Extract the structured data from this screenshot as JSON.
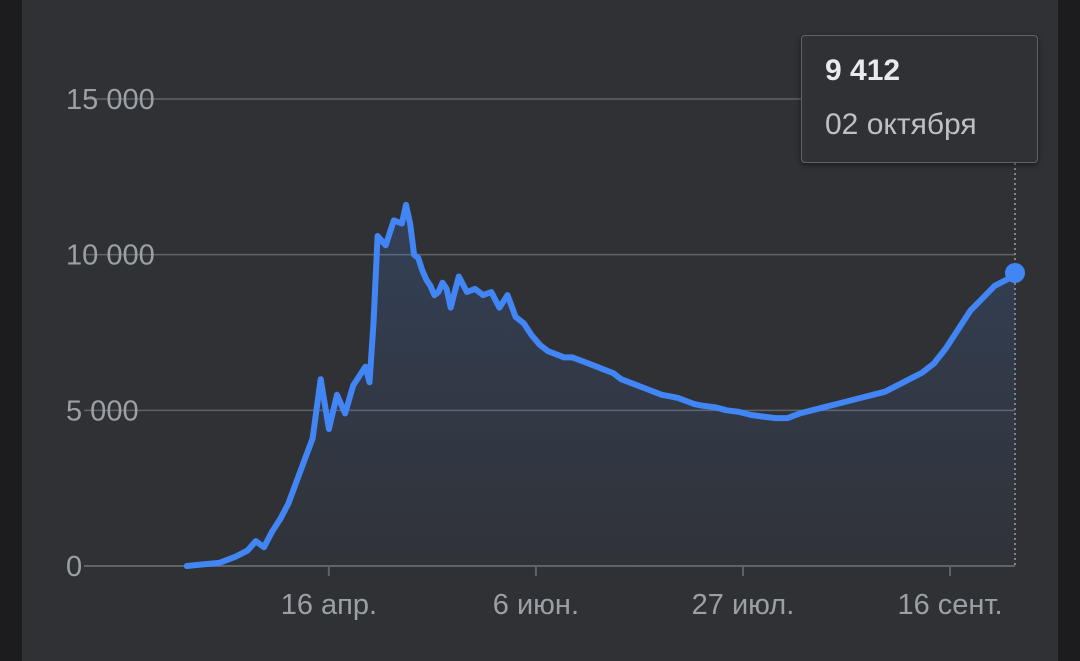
{
  "colors": {
    "line": "#4285f4",
    "grid": "#5f6368",
    "text": "#9aa0a6",
    "panel": "#303134"
  },
  "tooltip": {
    "value": "9 412",
    "date": "02 октября"
  },
  "chart_data": {
    "type": "line",
    "y_tick_labels": [
      "0",
      "5 000",
      "10 000",
      "15 000"
    ],
    "y_tick_values": [
      0,
      5000,
      10000,
      15000
    ],
    "x_tick_labels": [
      "16 апр.",
      "6 июн.",
      "27 июл.",
      "16 сент."
    ],
    "x_tick_dates": [
      "2020-04-16",
      "2020-06-06",
      "2020-07-27",
      "2020-09-16"
    ],
    "ylim": [
      0,
      15000
    ],
    "xlim": [
      "2020-03-12",
      "2020-10-02"
    ],
    "grid": true,
    "highlight": {
      "date": "2020-10-02",
      "value": 9412
    },
    "series": [
      {
        "x": [
          "2020-03-12",
          "2020-03-16",
          "2020-03-20",
          "2020-03-24",
          "2020-03-27",
          "2020-03-29",
          "2020-03-31",
          "2020-04-02",
          "2020-04-04",
          "2020-04-06",
          "2020-04-08",
          "2020-04-10",
          "2020-04-12",
          "2020-04-14",
          "2020-04-16",
          "2020-04-18",
          "2020-04-20",
          "2020-04-22",
          "2020-04-23",
          "2020-04-24",
          "2020-04-25",
          "2020-04-26",
          "2020-04-27",
          "2020-04-28",
          "2020-04-30",
          "2020-05-02",
          "2020-05-04",
          "2020-05-05",
          "2020-05-06",
          "2020-05-07",
          "2020-05-08",
          "2020-05-09",
          "2020-05-10",
          "2020-05-11",
          "2020-05-12",
          "2020-05-13",
          "2020-05-14",
          "2020-05-15",
          "2020-05-16",
          "2020-05-17",
          "2020-05-18",
          "2020-05-20",
          "2020-05-22",
          "2020-05-24",
          "2020-05-26",
          "2020-05-28",
          "2020-05-30",
          "2020-06-01",
          "2020-06-03",
          "2020-06-05",
          "2020-06-07",
          "2020-06-09",
          "2020-06-11",
          "2020-06-13",
          "2020-06-15",
          "2020-06-17",
          "2020-06-19",
          "2020-06-21",
          "2020-06-23",
          "2020-06-25",
          "2020-06-27",
          "2020-06-29",
          "2020-07-01",
          "2020-07-03",
          "2020-07-05",
          "2020-07-07",
          "2020-07-09",
          "2020-07-11",
          "2020-07-13",
          "2020-07-15",
          "2020-07-17",
          "2020-07-20",
          "2020-07-23",
          "2020-07-26",
          "2020-07-29",
          "2020-08-01",
          "2020-08-04",
          "2020-08-07",
          "2020-08-10",
          "2020-08-13",
          "2020-08-16",
          "2020-08-19",
          "2020-08-22",
          "2020-08-25",
          "2020-08-28",
          "2020-08-31",
          "2020-09-03",
          "2020-09-06",
          "2020-09-09",
          "2020-09-12",
          "2020-09-15",
          "2020-09-18",
          "2020-09-21",
          "2020-09-24",
          "2020-09-27",
          "2020-09-30",
          "2020-10-02"
        ],
        "values": [
          0,
          50,
          100,
          300,
          500,
          800,
          600,
          1100,
          1500,
          2000,
          2700,
          3400,
          4100,
          6000,
          4400,
          5500,
          4900,
          5800,
          6000,
          6200,
          6400,
          5900,
          7800,
          10600,
          10300,
          11100,
          11000,
          11600,
          11000,
          10000,
          9900,
          9500,
          9200,
          9000,
          8700,
          8800,
          9100,
          8900,
          8300,
          8800,
          9300,
          8800,
          8900,
          8700,
          8800,
          8300,
          8700,
          8000,
          7800,
          7400,
          7100,
          6900,
          6800,
          6700,
          6700,
          6600,
          6500,
          6400,
          6300,
          6200,
          6000,
          5900,
          5800,
          5700,
          5600,
          5500,
          5450,
          5400,
          5300,
          5200,
          5150,
          5100,
          5000,
          4950,
          4850,
          4800,
          4750,
          4750,
          4900,
          5000,
          5100,
          5200,
          5300,
          5400,
          5500,
          5600,
          5800,
          6000,
          6200,
          6500,
          7000,
          7600,
          8200,
          8600,
          9000,
          9200,
          9412
        ]
      }
    ]
  }
}
